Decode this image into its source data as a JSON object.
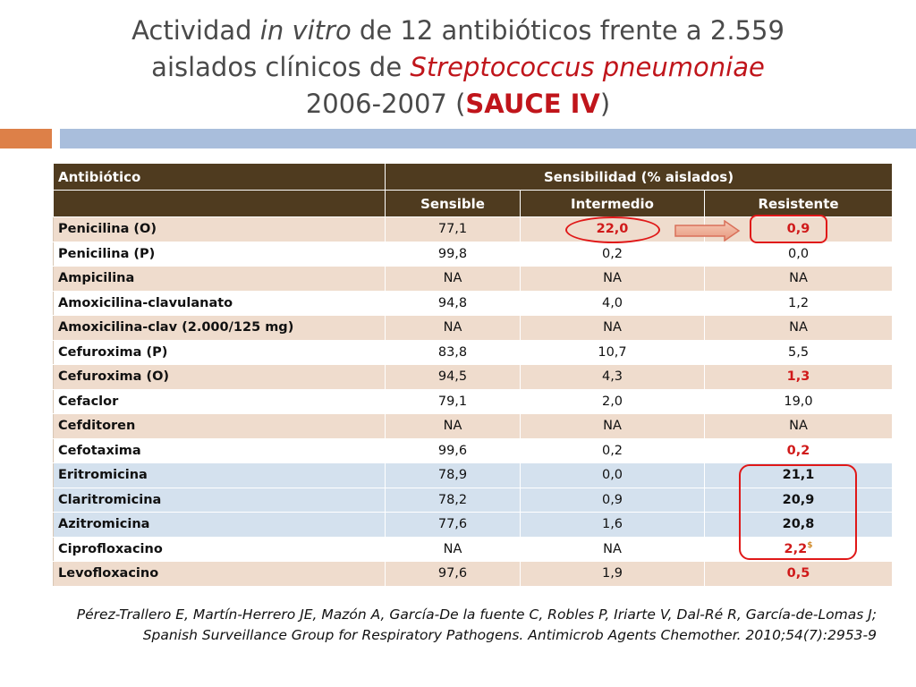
{
  "title": {
    "l1_a": "Actividad ",
    "l1_b": "in vitro",
    "l1_c": " de 12 antibióticos frente a 2.559",
    "l2_a": "aislados clínicos de ",
    "l2_b": "Streptococcus pneumoniae",
    "l3_a": "2006-2007 (",
    "l3_b": "SAUCE IV",
    "l3_c": ")"
  },
  "colors": {
    "header_bg": "#4f3b1f",
    "row_shade": "#efdccd",
    "row_blue": "#d4e1ee",
    "highlight_red": "#d01a1a",
    "accent_orange": "#dd8048",
    "accent_blue": "#a9bedc"
  },
  "table": {
    "header": {
      "col1": "Antibiótico",
      "group": "Sensibilidad  (% aislados)",
      "sub1": "Sensible",
      "sub2": "Intermedio",
      "sub3": "Resistente"
    },
    "rows": [
      {
        "name": "Penicilina (O)",
        "s": "77,1",
        "i": "22,0",
        "r": "0,9"
      },
      {
        "name": "Penicilina (P)",
        "s": "99,8",
        "i": "0,2",
        "r": "0,0"
      },
      {
        "name": "Ampicilina",
        "s": "NA",
        "i": "NA",
        "r": "NA"
      },
      {
        "name": "Amoxicilina-clavulanato",
        "s": "94,8",
        "i": "4,0",
        "r": "1,2"
      },
      {
        "name": "Amoxicilina-clav (2.000/125 mg)",
        "s": "NA",
        "i": "NA",
        "r": "NA"
      },
      {
        "name": "Cefuroxima (P)",
        "s": "83,8",
        "i": "10,7",
        "r": "5,5"
      },
      {
        "name": "Cefuroxima (O)",
        "s": "94,5",
        "i": "4,3",
        "r": "1,3"
      },
      {
        "name": "Cefaclor",
        "s": "79,1",
        "i": "2,0",
        "r": "19,0"
      },
      {
        "name": "Cefditoren",
        "s": "NA",
        "i": "NA",
        "r": "NA"
      },
      {
        "name": "Cefotaxima",
        "s": "99,6",
        "i": "0,2",
        "r": "0,2"
      },
      {
        "name": "Eritromicina",
        "s": "78,9",
        "i": "0,0",
        "r": "21,1"
      },
      {
        "name": "Claritromicina",
        "s": "78,2",
        "i": "0,9",
        "r": "20,9"
      },
      {
        "name": "Azitromicina",
        "s": "77,6",
        "i": "1,6",
        "r": "20,8"
      },
      {
        "name": "Ciprofloxacino",
        "s": "NA",
        "i": "NA",
        "r": "2,2",
        "mark": "$"
      },
      {
        "name": "Levofloxacino",
        "s": "97,6",
        "i": "1,9",
        "r": "0,5"
      }
    ]
  },
  "citation": {
    "line1": "Pérez-Trallero E, Martín-Herrero JE, Mazón A, García-De la fuente C, Robles P, Iriarte V, Dal-Ré R, García-de-Lomas J;",
    "line2": "Spanish Surveillance Group for Respiratory Pathogens. Antimicrob Agents Chemother. 2010;54(7):2953-9"
  }
}
